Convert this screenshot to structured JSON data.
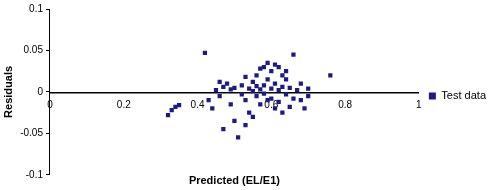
{
  "chart_data": {
    "type": "scatter",
    "x_label": "Predicted (EL/E1)",
    "y_label": "Residuals",
    "series": [
      {
        "name": "Test data",
        "color": "#1c1c80",
        "marker": "square",
        "x": [
          0.32,
          0.33,
          0.34,
          0.35,
          0.42,
          0.43,
          0.44,
          0.45,
          0.46,
          0.47,
          0.48,
          0.49,
          0.5,
          0.5,
          0.51,
          0.52,
          0.52,
          0.53,
          0.53,
          0.54,
          0.54,
          0.55,
          0.55,
          0.56,
          0.56,
          0.57,
          0.57,
          0.58,
          0.58,
          0.59,
          0.59,
          0.6,
          0.6,
          0.6,
          0.61,
          0.61,
          0.62,
          0.62,
          0.62,
          0.63,
          0.63,
          0.64,
          0.64,
          0.65,
          0.65,
          0.66,
          0.66,
          0.67,
          0.68,
          0.68,
          0.69,
          0.7,
          0.7,
          0.76,
          0.58,
          0.57,
          0.61,
          0.55,
          0.53,
          0.49,
          0.47,
          0.46,
          0.59,
          0.63,
          0.64,
          0.56
        ],
        "values": [
          -0.028,
          -0.022,
          -0.018,
          -0.016,
          0.047,
          -0.01,
          -0.02,
          0.002,
          -0.005,
          -0.045,
          0.01,
          0.003,
          -0.035,
          0.005,
          -0.055,
          -0.003,
          0.008,
          0.018,
          -0.01,
          0.004,
          -0.025,
          0.001,
          0.012,
          -0.005,
          0.02,
          0.003,
          -0.015,
          0.008,
          -0.002,
          0.015,
          0.035,
          0.025,
          -0.008,
          0.004,
          0.01,
          -0.02,
          0.03,
          0.002,
          -0.012,
          0.02,
          0.006,
          -0.003,
          0.015,
          0.005,
          -0.018,
          -0.008,
          0.045,
          0.002,
          -0.01,
          0.01,
          -0.02,
          0.004,
          -0.005,
          0.02,
          0.03,
          0.028,
          0.033,
          -0.03,
          -0.04,
          -0.015,
          0.006,
          0.012,
          -0.01,
          -0.025,
          0.025,
          0.007
        ]
      }
    ],
    "xlim": [
      0,
      1
    ],
    "xticks": [
      0,
      0.2,
      0.4,
      0.6,
      0.8,
      1
    ],
    "ylim": [
      -0.1,
      0.1
    ],
    "yticks": [
      -0.1,
      -0.05,
      0,
      0.05,
      0.1
    ],
    "grid": false,
    "legend": "right"
  }
}
